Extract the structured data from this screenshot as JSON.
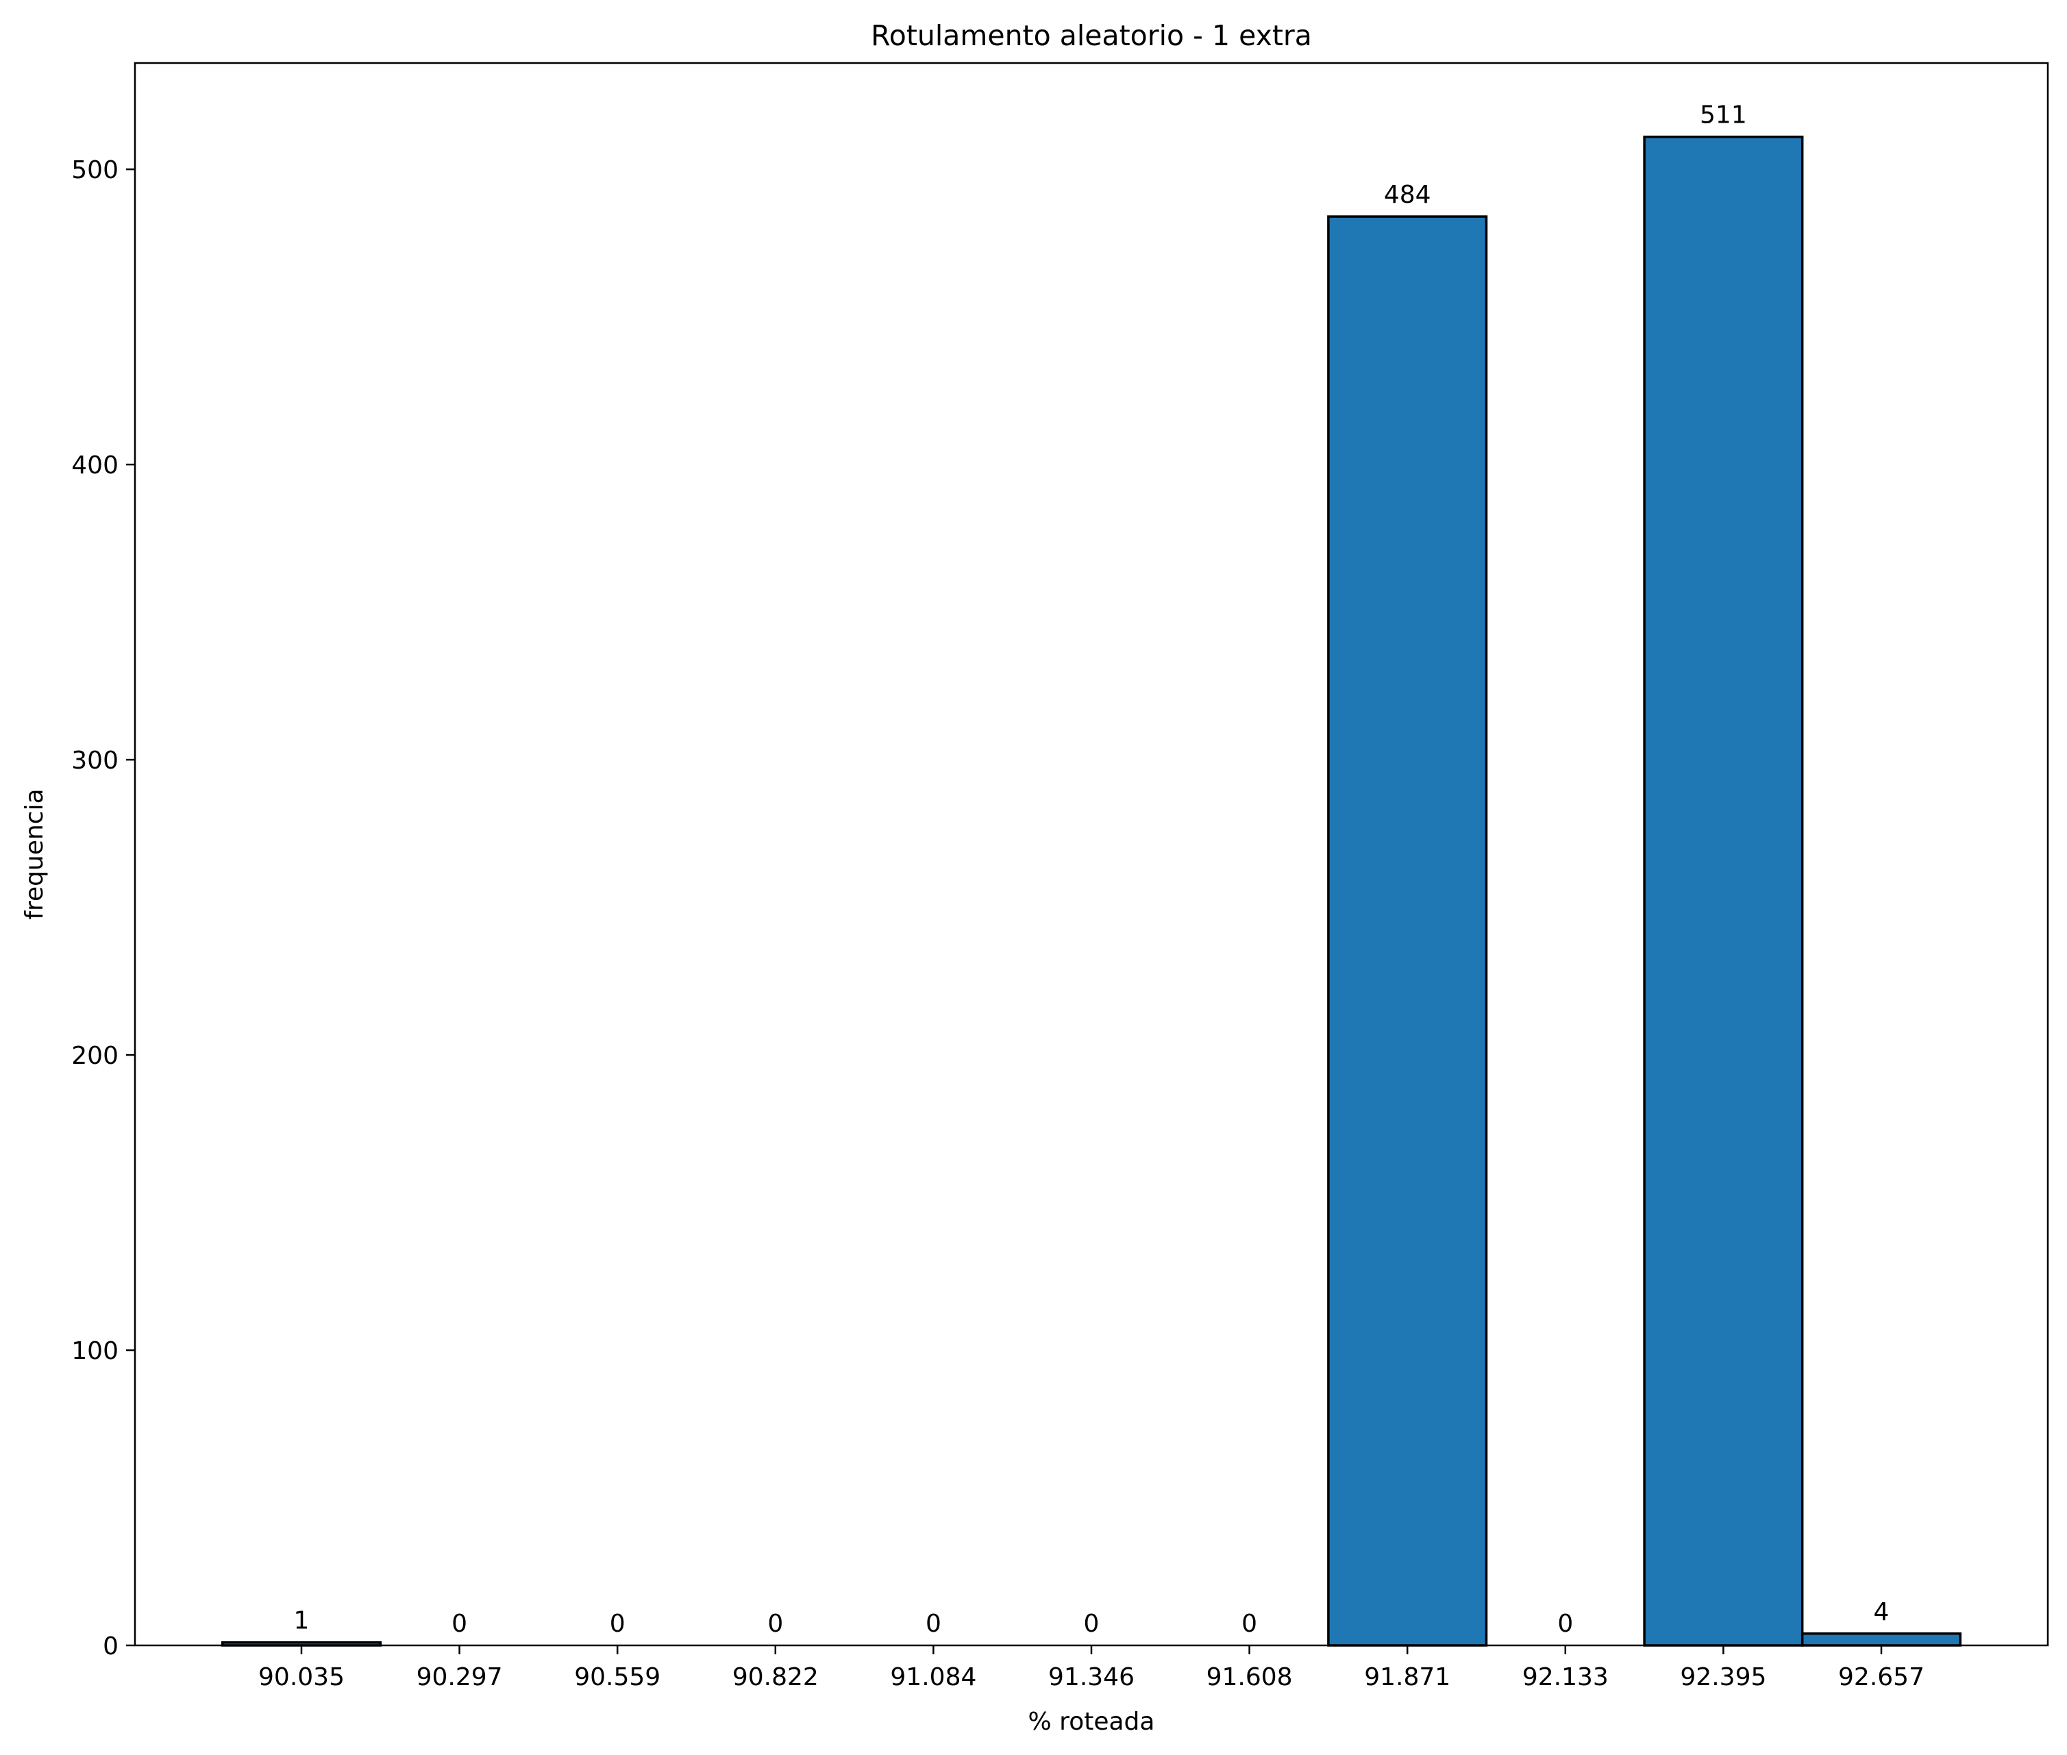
{
  "chart_data": {
    "type": "bar",
    "title": "Rotulamento aleatorio - 1 extra",
    "xlabel": "% roteada",
    "ylabel": "frequencia",
    "categories": [
      "90.035",
      "90.297",
      "90.559",
      "90.822",
      "91.084",
      "91.346",
      "91.608",
      "91.871",
      "92.133",
      "92.395",
      "92.657"
    ],
    "values": [
      1,
      0,
      0,
      0,
      0,
      0,
      0,
      484,
      0,
      511,
      4
    ],
    "data_labels": [
      "1",
      "0",
      "0",
      "0",
      "0",
      "0",
      "0",
      "484",
      "0",
      "511",
      "4"
    ],
    "ylim": [
      0,
      536
    ],
    "yticks": [
      0,
      100,
      200,
      300,
      400,
      500
    ],
    "grid": false,
    "legend": "none",
    "bar_color": "#1f77b4",
    "edge_color": "#000000"
  }
}
